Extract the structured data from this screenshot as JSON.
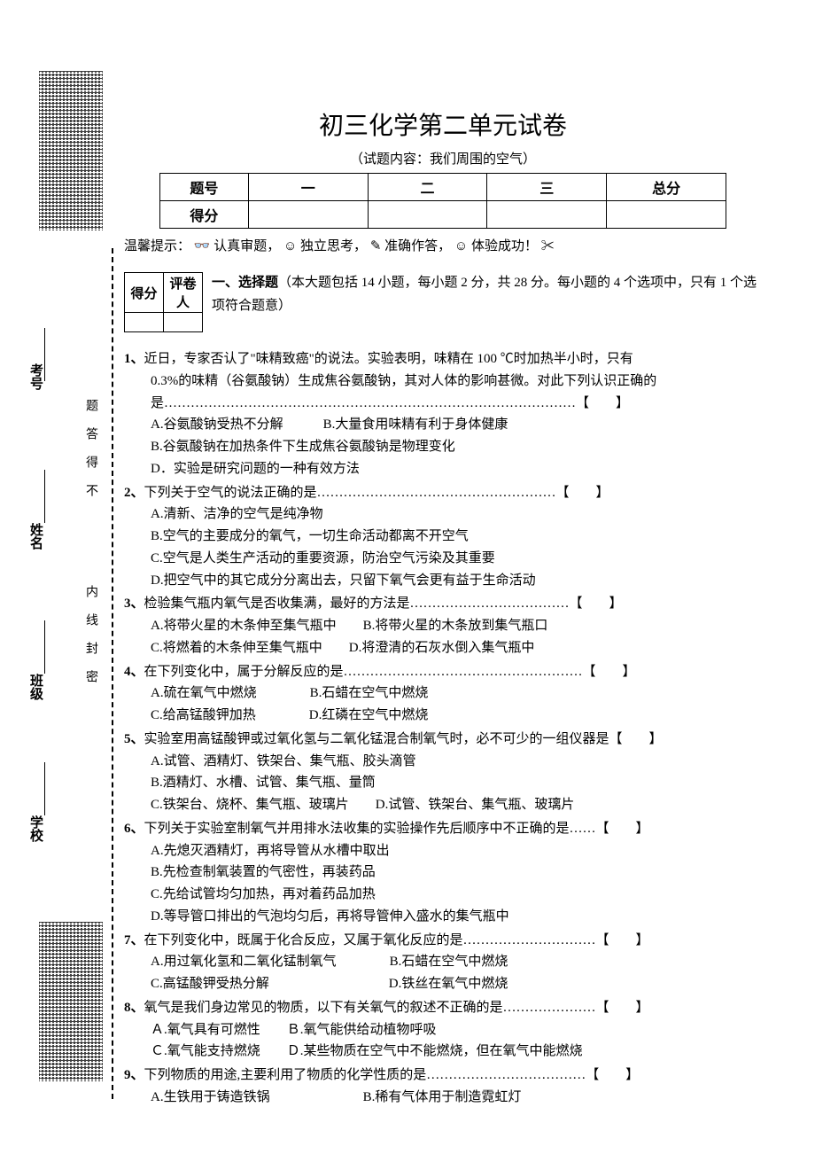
{
  "title": "初三化学第二单元试卷",
  "subtitle": "（试题内容：我们周围的空气）",
  "score_table": {
    "headers": [
      "题号",
      "一",
      "二",
      "三",
      "总分"
    ],
    "row_label": "得分"
  },
  "hint": {
    "prefix": "温馨提示：",
    "items": [
      "认真审题，",
      "独立思考，",
      "准确作答，",
      "体验成功！"
    ]
  },
  "mini_table": {
    "left": "得分",
    "right": "评卷人"
  },
  "section1": {
    "label": "一、选择题",
    "desc": "（本大题包括 14 小题，每小题 2 分，共 28 分。每小题的 4 个选项中，只有 1 个选项符合题意）"
  },
  "vertical_labels": {
    "outer": [
      "考号",
      "姓名",
      "班级",
      "学校"
    ],
    "inner_top": "题答得不",
    "inner_bottom": "内线封密"
  },
  "questions": [
    {
      "num": "1、",
      "stem_lines": [
        "近日，专家否认了\"味精致癌\"的说法。实验表明，味精在 100 ℃时加热半小时，只有",
        "0.3%的味精（谷氨酸钠）生成焦谷氨酸钠，其对人体的影响甚微。对此下列认识正确的"
      ],
      "tail": "是…………………………………………………………………………………【　　】",
      "options": [
        "A.谷氨酸钠受热不分解　　　B.大量食用味精有利于身体健康",
        "B.谷氨酸钠在加热条件下生成焦谷氨酸钠是物理变化",
        "D．实验是研究问题的一种有效方法"
      ]
    },
    {
      "num": "2、",
      "tail": "下列关于空气的说法正确的是………………………………………………【　　】",
      "options": [
        "A.清新、洁净的空气是纯净物",
        "B.空气的主要成分的氧气，一切生命活动都离不开空气",
        "C.空气是人类生产活动的重要资源，防治空气污染及其重要",
        "D.把空气中的其它成分分离出去，只留下氧气会更有益于生命活动"
      ]
    },
    {
      "num": "3、",
      "tail": "检验集气瓶内氧气是否收集满，最好的方法是………………………………【　　】",
      "options": [
        "A.将带火星的木条伸至集气瓶中　　B.将带火星的木条放到集气瓶口",
        "C.将燃着的木条伸至集气瓶中　　D.将澄清的石灰水倒入集气瓶中"
      ]
    },
    {
      "num": "4、",
      "tail": "在下列变化中，属于分解反应的是………………………………………………【　　】",
      "options": [
        "A.硫在氧气中燃烧　　　　B.石蜡在空气中燃烧",
        "C.给高锰酸钾加热　　　　D.红磷在空气中燃烧"
      ]
    },
    {
      "num": "5、",
      "tail": "实验室用高锰酸钾或过氧化氢与二氧化锰混合制氧气时，必不可少的一组仪器是【　　】",
      "options": [
        "A.试管、酒精灯、铁架台、集气瓶、胶头滴管",
        "B.酒精灯、水槽、试管、集气瓶、量筒",
        "C.铁架台、烧杯、集气瓶、玻璃片　　D.试管、铁架台、集气瓶、玻璃片"
      ]
    },
    {
      "num": "6、",
      "tail": "下列关于实验室制氧气并用排水法收集的实验操作先后顺序中不正确的是……【　　】",
      "options": [
        "A.先熄灭酒精灯，再将导管从水槽中取出",
        "B.先检查制氧装置的气密性，再装药品",
        "C.先给试管均匀加热，再对着药品加热",
        "D.等导管口排出的气泡均匀后，再将导管伸入盛水的集气瓶中"
      ]
    },
    {
      "num": "7、",
      "tail": "在下列变化中，既属于化合反应，又属于氧化反应的是…………………………【　　】",
      "options": [
        "A.用过氧化氢和二氧化锰制氧气　　　　B.石蜡在空气中燃烧",
        "C.高锰酸钾受热分解　　　　　　　　　D.铁丝在氧气中燃烧"
      ]
    },
    {
      "num": "8、",
      "tail": "氧气是我们身边常见的物质，以下有关氧气的叙述不正确的是…………………【　　】",
      "options": [
        "Ａ.氧气具有可燃性　　Ｂ.氧气能供给动植物呼吸",
        "Ｃ.氧气能支持燃烧　　Ｄ.某些物质在空气中不能燃烧，但在氧气中能燃烧"
      ]
    },
    {
      "num": "9、",
      "tail": "下列物质的用途,主要利用了物质的化学性质的是………………………………【　　】",
      "options": [
        "A.生铁用于铸造铁锅　　　　　　　B.稀有气体用于制造霓虹灯"
      ]
    }
  ],
  "colors": {
    "text": "#000000",
    "background": "#ffffff"
  },
  "fonts": {
    "body_size": 15,
    "title_size": 28
  }
}
